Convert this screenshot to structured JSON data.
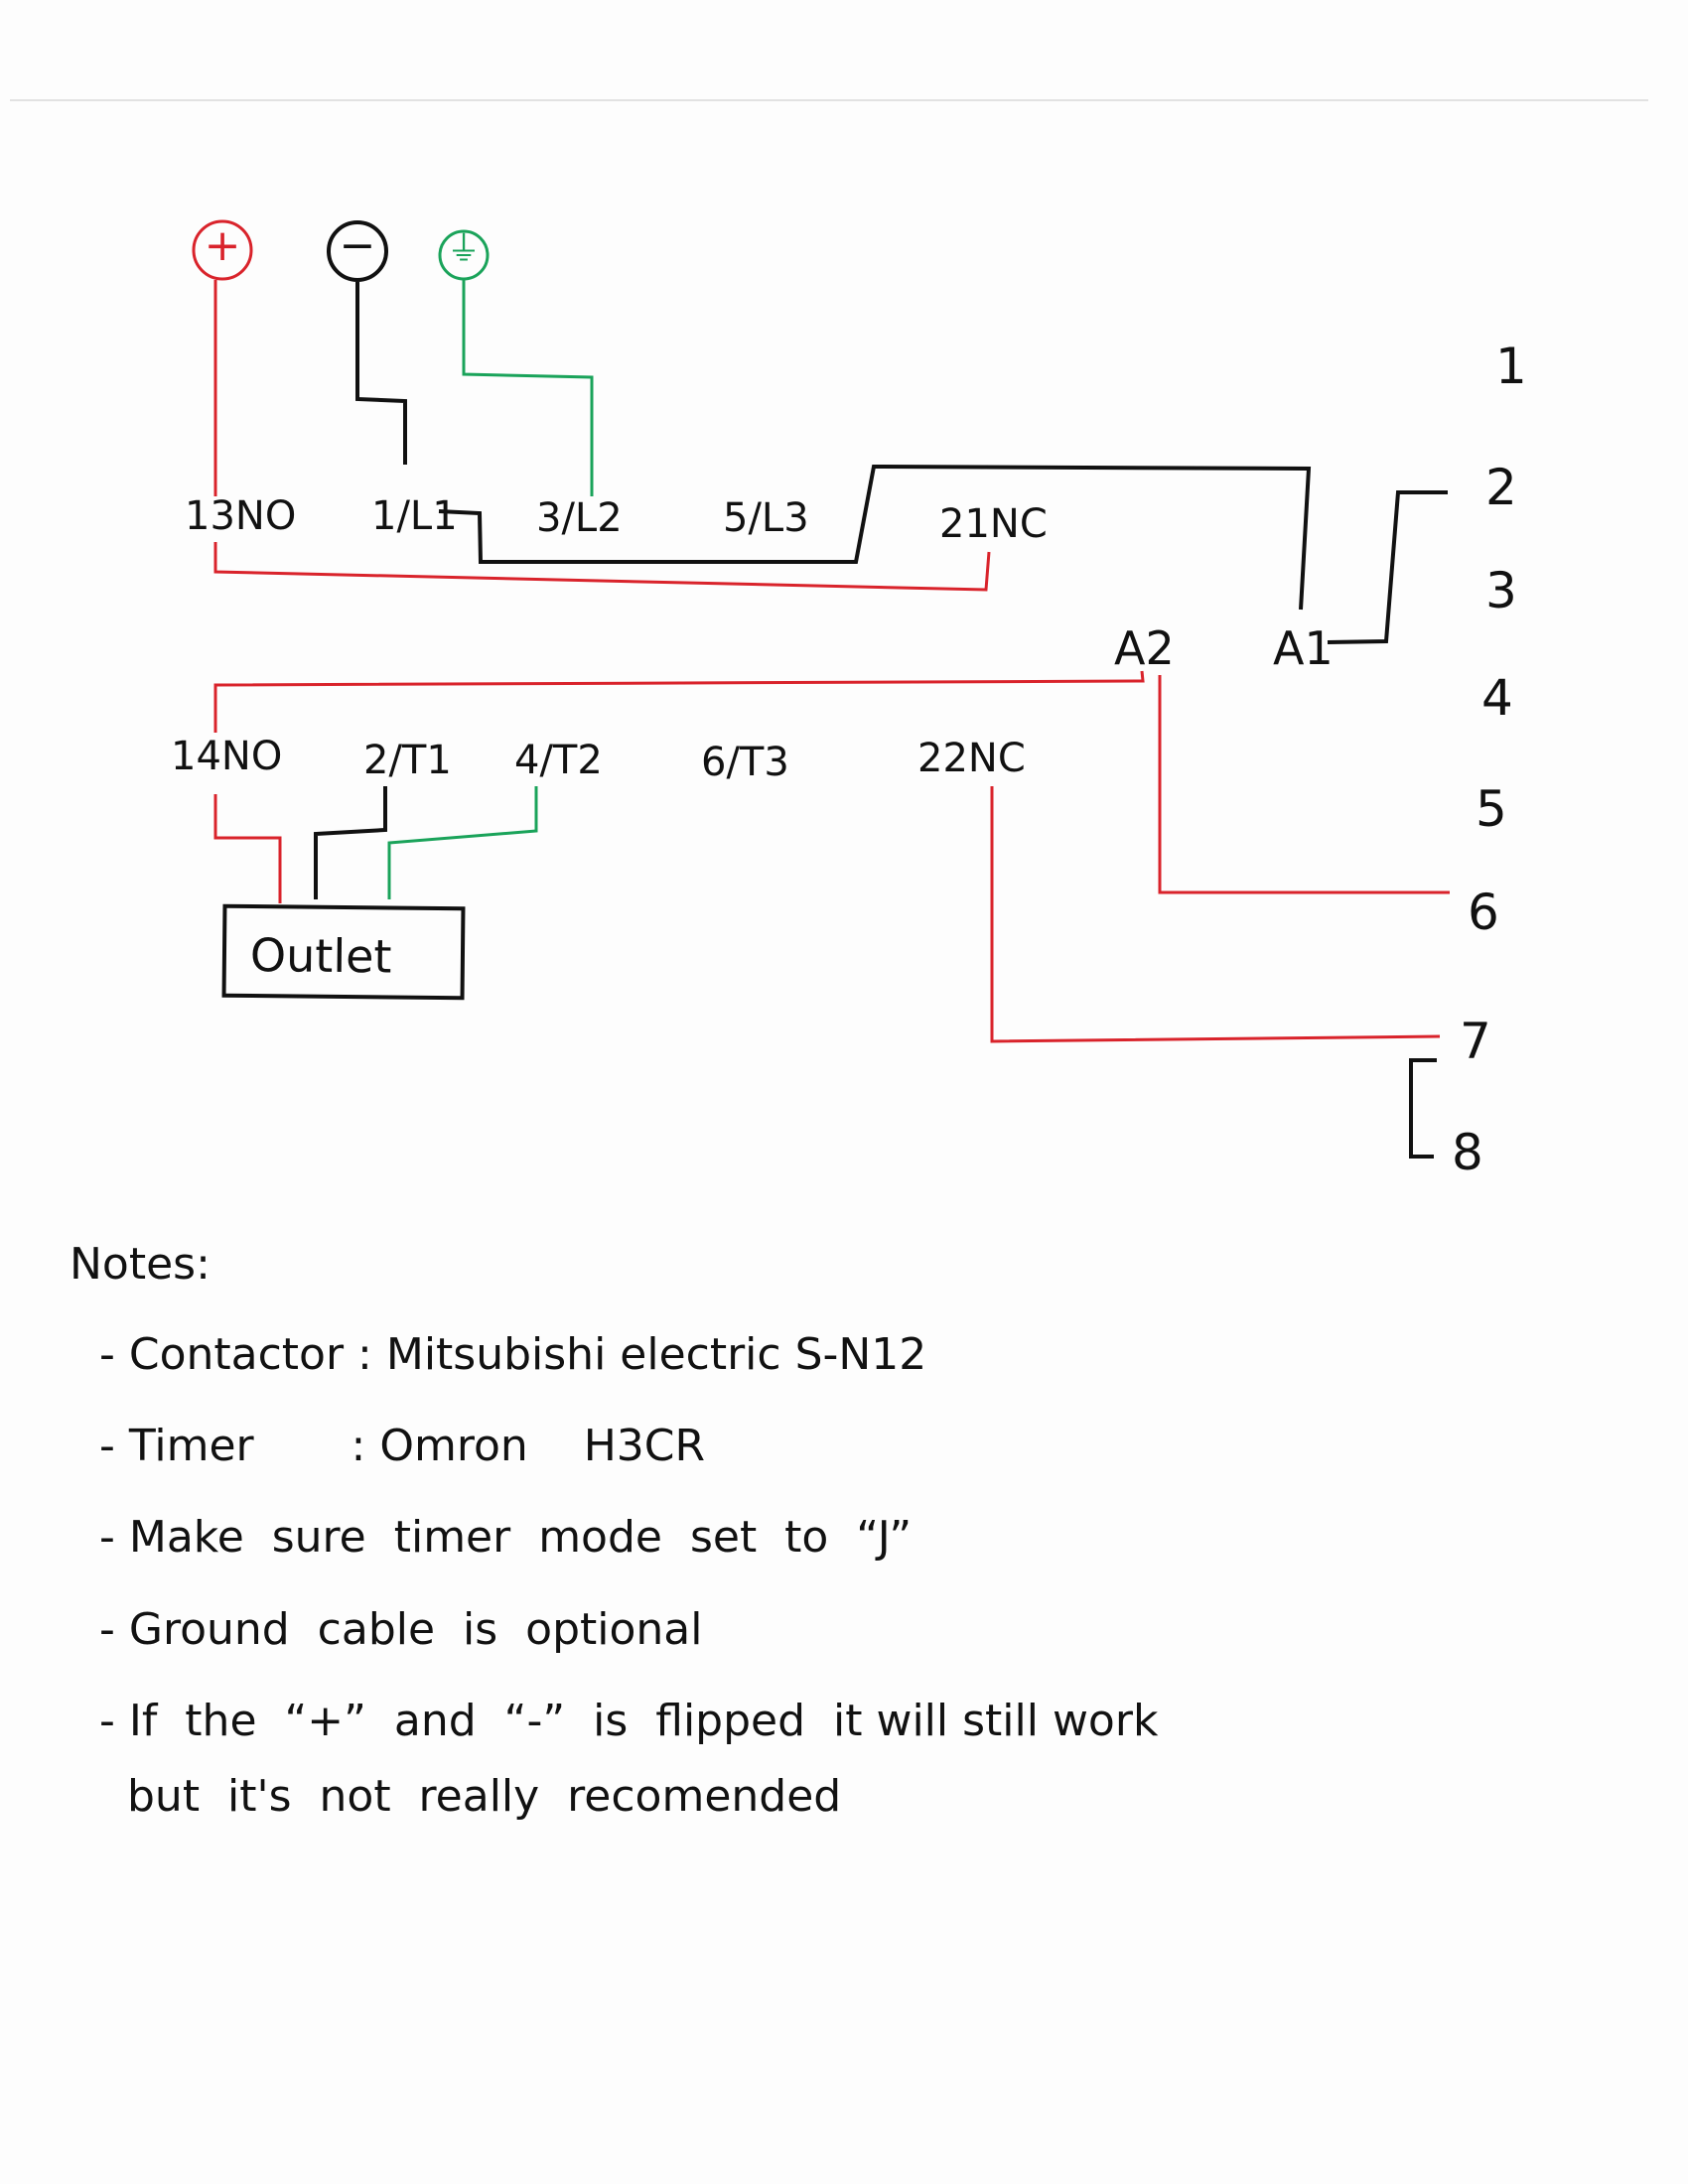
{
  "colors": {
    "red": "#d9232b",
    "black": "#111111",
    "green": "#1aa35a"
  },
  "supply": {
    "plus": "+",
    "minus": "−",
    "ground": "⏚"
  },
  "contactor": {
    "top": [
      "13NO",
      "1/L1",
      "3/L2",
      "5/L3",
      "21NC"
    ],
    "bottom": [
      "14NO",
      "2/T1",
      "4/T2",
      "6/T3",
      "22NC"
    ],
    "coil": [
      "A2",
      "A1"
    ]
  },
  "outlet": "Outlet",
  "timer_pins": [
    "1",
    "2",
    "3",
    "4",
    "5",
    "6",
    "7",
    "8"
  ],
  "notes": {
    "title": "Notes:",
    "items": [
      "- Contactor : Mitsubishi electric  S-N12",
      "- Timer       : Omron    H3CR",
      "- Make  sure  timer  mode  set  to  “J”",
      "- Ground  cable  is  optional",
      "- If  the  “+”  and  “-”  is  flipped  it will still work"
    ],
    "continuation": "but  it's  not  really  recomended"
  }
}
